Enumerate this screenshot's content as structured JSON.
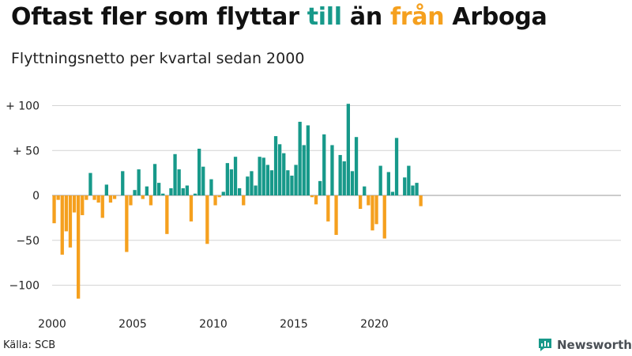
{
  "title": {
    "part1": "Oftast fler som flyttar ",
    "highlight_in": "till",
    "part2": " än ",
    "highlight_out": "från",
    "part3": " Arboga"
  },
  "subtitle": "Flyttningsnetto per kvartal sedan 2000",
  "source": "Källa: SCB",
  "logo_text": "Newsworthy",
  "colors": {
    "positive": "#17998a",
    "negative": "#f5a01e",
    "grid": "#d4d4d4",
    "zero_line": "#999999"
  },
  "chart_data": {
    "type": "bar",
    "x_start": "2000 Q1",
    "x_ticks": [
      "2000",
      "2005",
      "2010",
      "2015",
      "2020"
    ],
    "y_ticks": [
      {
        "value": 100,
        "label": "+ 100"
      },
      {
        "value": 50,
        "label": "+  50"
      },
      {
        "value": 0,
        "label": "0"
      },
      {
        "value": -50,
        "label": "−50"
      },
      {
        "value": -100,
        "label": "−100"
      }
    ],
    "ylim": [
      -115,
      115
    ],
    "grid": true,
    "values": [
      -31,
      -5,
      -66,
      -40,
      -58,
      -19,
      -115,
      -22,
      -5,
      25,
      -5,
      -8,
      -25,
      12,
      -8,
      -4,
      0,
      27,
      -63,
      -11,
      6,
      29,
      -4,
      10,
      -11,
      35,
      14,
      2,
      -43,
      8,
      46,
      29,
      8,
      11,
      -29,
      2,
      52,
      32,
      -54,
      18,
      -11,
      -2,
      4,
      36,
      29,
      43,
      8,
      -11,
      21,
      27,
      11,
      43,
      42,
      34,
      28,
      66,
      57,
      47,
      28,
      22,
      34,
      82,
      56,
      78,
      -2,
      -10,
      16,
      68,
      -29,
      56,
      -44,
      45,
      38,
      102,
      27,
      65,
      -15,
      10,
      -11,
      -39,
      -32,
      33,
      -48,
      26,
      4,
      64,
      0,
      20,
      33,
      11,
      14,
      -12
    ]
  }
}
